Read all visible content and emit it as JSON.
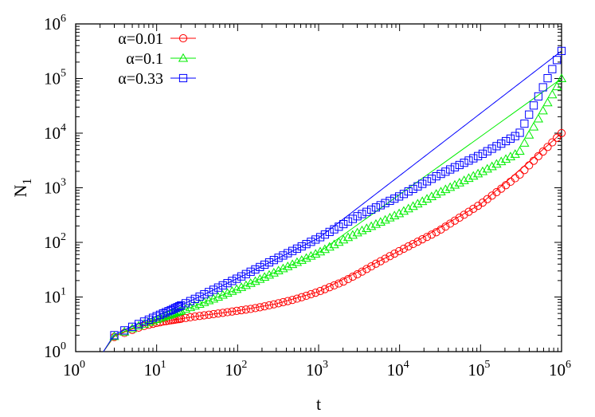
{
  "chart_data": {
    "type": "scatter",
    "xlabel": "t",
    "ylabel_base": "N",
    "ylabel_sub": "1",
    "xscale": "log",
    "yscale": "log",
    "xlim": [
      1,
      1000000
    ],
    "ylim": [
      1,
      1000000
    ],
    "x_ticks": [
      {
        "value": 1,
        "base": "10",
        "exp": "0"
      },
      {
        "value": 10,
        "base": "10",
        "exp": "1"
      },
      {
        "value": 100,
        "base": "10",
        "exp": "2"
      },
      {
        "value": 1000,
        "base": "10",
        "exp": "3"
      },
      {
        "value": 10000,
        "base": "10",
        "exp": "4"
      },
      {
        "value": 100000,
        "base": "10",
        "exp": "5"
      },
      {
        "value": 1000000,
        "base": "10",
        "exp": "6"
      }
    ],
    "y_ticks": [
      {
        "value": 1,
        "base": "10",
        "exp": "0"
      },
      {
        "value": 10,
        "base": "10",
        "exp": "1"
      },
      {
        "value": 100,
        "base": "10",
        "exp": "2"
      },
      {
        "value": 1000,
        "base": "10",
        "exp": "3"
      },
      {
        "value": 10000,
        "base": "10",
        "exp": "4"
      },
      {
        "value": 100000,
        "base": "10",
        "exp": "5"
      },
      {
        "value": 1000000,
        "base": "10",
        "exp": "6"
      }
    ],
    "grid": false,
    "legend_position": "top-left",
    "series": [
      {
        "name": "α=0.01",
        "color": "#ff0000",
        "marker": "circle",
        "points": [
          [
            3,
            1.85
          ],
          [
            4,
            2.2
          ],
          [
            5,
            2.5
          ],
          [
            6,
            2.75
          ],
          [
            7,
            2.95
          ],
          [
            8,
            3.1
          ],
          [
            10,
            3.35
          ],
          [
            12,
            3.55
          ],
          [
            15,
            3.75
          ],
          [
            20,
            4.0
          ],
          [
            30,
            4.4
          ],
          [
            50,
            4.85
          ],
          [
            70,
            5.2
          ],
          [
            100,
            5.6
          ],
          [
            150,
            6.1
          ],
          [
            200,
            6.6
          ],
          [
            300,
            7.5
          ],
          [
            500,
            9.0
          ],
          [
            700,
            10.5
          ],
          [
            1000,
            12.5
          ],
          [
            2000,
            19
          ],
          [
            3000,
            26
          ],
          [
            5000,
            40
          ],
          [
            10000,
            70
          ],
          [
            30000,
            160
          ],
          [
            100000,
            500
          ],
          [
            300000,
            1700
          ],
          [
            1000000,
            10000
          ]
        ],
        "curve": [
          [
            2.2,
            1
          ],
          [
            3,
            1.9
          ],
          [
            5,
            2.6
          ],
          [
            10,
            3.4
          ],
          [
            30,
            4.4
          ],
          [
            100,
            5.6
          ],
          [
            300,
            7.5
          ],
          [
            1000,
            12.5
          ],
          [
            10000,
            70
          ],
          [
            100000,
            500
          ],
          [
            1000000,
            10000
          ]
        ]
      },
      {
        "name": "α=0.1",
        "color": "#00ee00",
        "marker": "triangle",
        "points": [
          [
            3,
            1.9
          ],
          [
            4,
            2.3
          ],
          [
            5,
            2.65
          ],
          [
            6,
            2.95
          ],
          [
            7,
            3.2
          ],
          [
            8,
            3.45
          ],
          [
            10,
            3.9
          ],
          [
            12,
            4.3
          ],
          [
            15,
            4.8
          ],
          [
            20,
            5.6
          ],
          [
            30,
            6.9
          ],
          [
            50,
            9.2
          ],
          [
            100,
            14
          ],
          [
            200,
            22
          ],
          [
            300,
            29
          ],
          [
            1000,
            65
          ],
          [
            3000,
            150
          ],
          [
            10000,
            340
          ],
          [
            30000,
            800
          ],
          [
            100000,
            1900
          ],
          [
            300000,
            4500
          ],
          [
            1000000,
            100000
          ]
        ],
        "curve": [
          [
            2.2,
            1
          ],
          [
            3,
            1.95
          ],
          [
            5,
            2.7
          ],
          [
            10,
            3.9
          ],
          [
            30,
            6.9
          ],
          [
            100,
            14
          ],
          [
            1000,
            65
          ],
          [
            1000000,
            100000
          ]
        ]
      },
      {
        "name": "α=0.33",
        "color": "#0000ff",
        "marker": "square",
        "points": [
          [
            3,
            2.0
          ],
          [
            4,
            2.45
          ],
          [
            5,
            2.85
          ],
          [
            6,
            3.2
          ],
          [
            7,
            3.55
          ],
          [
            8,
            3.85
          ],
          [
            10,
            4.45
          ],
          [
            12,
            5.0
          ],
          [
            15,
            5.75
          ],
          [
            20,
            7.0
          ],
          [
            30,
            9.3
          ],
          [
            50,
            13.5
          ],
          [
            100,
            22
          ],
          [
            200,
            37
          ],
          [
            300,
            50
          ],
          [
            1000,
            120
          ],
          [
            3000,
            300
          ],
          [
            10000,
            700
          ],
          [
            30000,
            1700
          ],
          [
            100000,
            4000
          ],
          [
            300000,
            9700
          ],
          [
            1000000,
            320000
          ]
        ],
        "curve": [
          [
            2.2,
            1
          ],
          [
            3,
            2.05
          ],
          [
            5,
            2.9
          ],
          [
            10,
            4.5
          ],
          [
            30,
            9.3
          ],
          [
            100,
            22
          ],
          [
            1000,
            120
          ],
          [
            1000000,
            320000
          ]
        ]
      }
    ]
  }
}
